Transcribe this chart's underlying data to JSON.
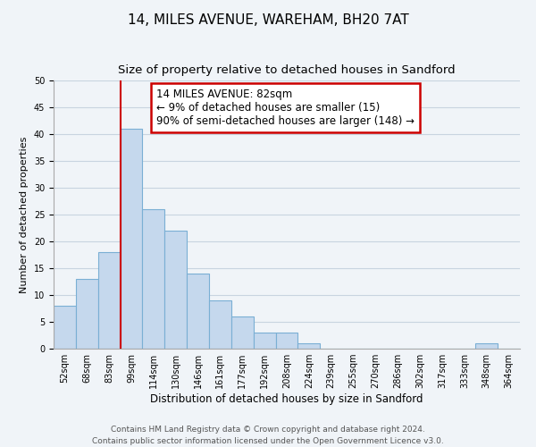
{
  "title": "14, MILES AVENUE, WAREHAM, BH20 7AT",
  "subtitle": "Size of property relative to detached houses in Sandford",
  "xlabel": "Distribution of detached houses by size in Sandford",
  "ylabel": "Number of detached properties",
  "bin_labels": [
    "52sqm",
    "68sqm",
    "83sqm",
    "99sqm",
    "114sqm",
    "130sqm",
    "146sqm",
    "161sqm",
    "177sqm",
    "192sqm",
    "208sqm",
    "224sqm",
    "239sqm",
    "255sqm",
    "270sqm",
    "286sqm",
    "302sqm",
    "317sqm",
    "333sqm",
    "348sqm",
    "364sqm"
  ],
  "bar_values": [
    8,
    13,
    18,
    41,
    26,
    22,
    14,
    9,
    6,
    3,
    3,
    1,
    0,
    0,
    0,
    0,
    0,
    0,
    0,
    1,
    0
  ],
  "bar_color": "#c5d8ed",
  "bar_edge_color": "#7aafd4",
  "vline_x_index": 2.5,
  "vline_color": "#cc0000",
  "annotation_text": "14 MILES AVENUE: 82sqm\n← 9% of detached houses are smaller (15)\n90% of semi-detached houses are larger (148) →",
  "annotation_box_color": "#ffffff",
  "annotation_box_edge_color": "#cc0000",
  "ylim": [
    0,
    50
  ],
  "yticks": [
    0,
    5,
    10,
    15,
    20,
    25,
    30,
    35,
    40,
    45,
    50
  ],
  "grid_color": "#c8d4e0",
  "background_color": "#f0f4f8",
  "footer_line1": "Contains HM Land Registry data © Crown copyright and database right 2024.",
  "footer_line2": "Contains public sector information licensed under the Open Government Licence v3.0.",
  "title_fontsize": 11,
  "subtitle_fontsize": 9.5,
  "annotation_fontsize": 8.5,
  "tick_label_fontsize": 7,
  "ylabel_fontsize": 8,
  "xlabel_fontsize": 8.5,
  "footer_fontsize": 6.5
}
